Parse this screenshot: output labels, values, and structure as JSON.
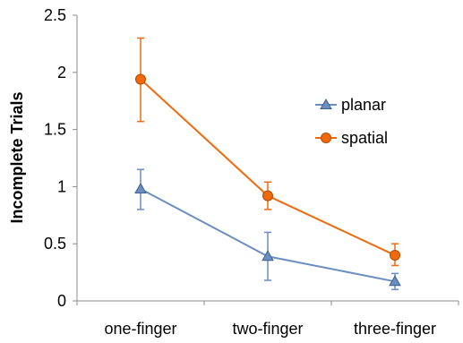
{
  "chart_data": {
    "type": "line",
    "categories": [
      "one-finger",
      "two-finger",
      "three-finger"
    ],
    "ylabel": "Incomplete Trials",
    "xlabel": "",
    "ylim": [
      0,
      2.5
    ],
    "yticks": [
      "0",
      "0.5",
      "1",
      "1.5",
      "2",
      "2.5"
    ],
    "grid": false,
    "legend_position": "right",
    "series": [
      {
        "name": "planar",
        "marker": "triangle",
        "color": "#6b8ec0",
        "values": [
          0.98,
          0.39,
          0.17
        ],
        "error_low": [
          0.8,
          0.18,
          0.1
        ],
        "error_high": [
          1.15,
          0.6,
          0.24
        ]
      },
      {
        "name": "spatial",
        "marker": "circle",
        "color": "#f06a0c",
        "values": [
          1.94,
          0.92,
          0.4
        ],
        "error_low": [
          1.57,
          0.8,
          0.31
        ],
        "error_high": [
          2.3,
          1.04,
          0.5
        ]
      }
    ]
  }
}
